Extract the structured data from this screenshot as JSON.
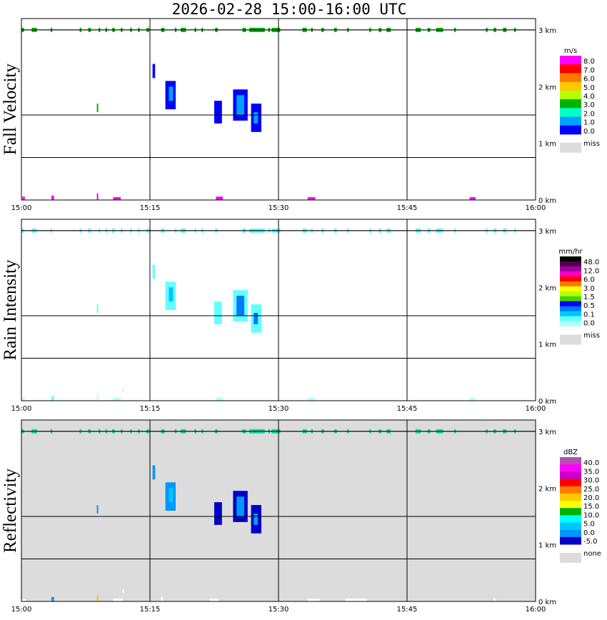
{
  "title": "2026-02-28  15:00-16:00 UTC",
  "x_ticks": [
    "15:00",
    "15:15",
    "15:30",
    "15:45",
    "16:00"
  ],
  "height_ticks": [
    "0 km",
    "1 km",
    "2 km",
    "3 km"
  ],
  "colors": {
    "grid": "#000000",
    "missing": "#dcdcdc",
    "background": "#ffffff"
  },
  "chart_data": [
    {
      "type": "heatmap",
      "title": "Fall Velocity",
      "xlabel": "",
      "ylabel": "Fall Velocity",
      "xlim": [
        "15:00",
        "16:00"
      ],
      "ylim": [
        0,
        3.2
      ],
      "grid": true,
      "background": "#ffffff",
      "legend": {
        "unit": "m/s",
        "position": "right",
        "labels": [
          "8.0",
          "7.0",
          "6.0",
          "5.0",
          "4.0",
          "3.0",
          "2.0",
          "1.0",
          "0.0"
        ],
        "colors": [
          "#ff00ff",
          "#ff0000",
          "#ff7800",
          "#ffc800",
          "#b4ff00",
          "#00b400",
          "#00ffc8",
          "#00a0ff",
          "#0000ff"
        ],
        "missing_label": "miss"
      },
      "echoes": [
        {
          "t0": 15.3,
          "t1": 15.6,
          "h0": 2.15,
          "h1": 2.4,
          "color": "#0000ff"
        },
        {
          "t0": 16.8,
          "t1": 18.0,
          "h0": 1.6,
          "h1": 2.1,
          "color": "#0000ff"
        },
        {
          "t0": 17.2,
          "t1": 17.7,
          "h0": 1.75,
          "h1": 2.0,
          "color": "#00a0ff"
        },
        {
          "t0": 22.5,
          "t1": 23.4,
          "h0": 1.35,
          "h1": 1.75,
          "color": "#0000ff"
        },
        {
          "t0": 24.7,
          "t1": 26.4,
          "h0": 1.4,
          "h1": 1.95,
          "color": "#0000ff"
        },
        {
          "t0": 25.1,
          "t1": 26.0,
          "h0": 1.5,
          "h1": 1.85,
          "color": "#00a0ff"
        },
        {
          "t0": 26.8,
          "t1": 28.0,
          "h0": 1.2,
          "h1": 1.7,
          "color": "#0000ff"
        },
        {
          "t0": 27.1,
          "t1": 27.6,
          "h0": 1.35,
          "h1": 1.55,
          "color": "#00a0ff"
        },
        {
          "t0": 8.8,
          "t1": 8.95,
          "h0": 1.55,
          "h1": 1.7,
          "color": "#00b400"
        },
        {
          "t0": 0.1,
          "t1": 0.4,
          "h0": 0.0,
          "h1": 0.06,
          "color": "#ff00ff"
        },
        {
          "t0": 3.5,
          "t1": 3.8,
          "h0": 0.0,
          "h1": 0.08,
          "color": "#ff00ff"
        },
        {
          "t0": 8.8,
          "t1": 8.95,
          "h0": 0.0,
          "h1": 0.12,
          "color": "#ff00ff"
        },
        {
          "t0": 10.7,
          "t1": 11.6,
          "h0": 0.0,
          "h1": 0.05,
          "color": "#ff00ff"
        },
        {
          "t0": 22.7,
          "t1": 23.5,
          "h0": 0.0,
          "h1": 0.06,
          "color": "#ff00ff"
        },
        {
          "t0": 33.4,
          "t1": 34.3,
          "h0": 0.0,
          "h1": 0.05,
          "color": "#ff00ff"
        },
        {
          "t0": 52.3,
          "t1": 53.0,
          "h0": 0.0,
          "h1": 0.05,
          "color": "#ff00ff"
        }
      ],
      "top_band_color": "#00b400"
    },
    {
      "type": "heatmap",
      "title": "Rain Intensity",
      "xlabel": "",
      "ylabel": "Rain Intensity",
      "xlim": [
        "15:00",
        "16:00"
      ],
      "ylim": [
        0,
        3.2
      ],
      "grid": true,
      "background": "#ffffff",
      "legend": {
        "unit": "mm/hr",
        "position": "right",
        "labels": [
          "48.0",
          "12.0",
          "6.0",
          "3.0",
          "1.5",
          "0.5",
          "0.1",
          "0.0"
        ],
        "colors": [
          "#000000",
          "#500050",
          "#a000a0",
          "#ff00c8",
          "#ff0000",
          "#ff7800",
          "#ffff00",
          "#b4ff00",
          "#46d200",
          "#0000ff",
          "#0078ff",
          "#00c8ff",
          "#64ffff",
          "#b4ffff"
        ],
        "missing_label": "miss"
      },
      "echoes": [
        {
          "t0": 15.3,
          "t1": 15.6,
          "h0": 2.15,
          "h1": 2.4,
          "color": "#64ffff"
        },
        {
          "t0": 16.8,
          "t1": 18.0,
          "h0": 1.6,
          "h1": 2.1,
          "color": "#64ffff"
        },
        {
          "t0": 17.2,
          "t1": 17.7,
          "h0": 1.75,
          "h1": 2.0,
          "color": "#00c8ff"
        },
        {
          "t0": 22.5,
          "t1": 23.4,
          "h0": 1.35,
          "h1": 1.75,
          "color": "#64ffff"
        },
        {
          "t0": 24.7,
          "t1": 26.4,
          "h0": 1.4,
          "h1": 1.95,
          "color": "#64ffff"
        },
        {
          "t0": 25.1,
          "t1": 26.0,
          "h0": 1.5,
          "h1": 1.85,
          "color": "#0078ff"
        },
        {
          "t0": 26.8,
          "t1": 28.0,
          "h0": 1.2,
          "h1": 1.7,
          "color": "#64ffff"
        },
        {
          "t0": 27.1,
          "t1": 27.6,
          "h0": 1.35,
          "h1": 1.55,
          "color": "#0078ff"
        },
        {
          "t0": 8.8,
          "t1": 8.95,
          "h0": 1.55,
          "h1": 1.7,
          "color": "#64ffff"
        },
        {
          "t0": 0.1,
          "t1": 0.4,
          "h0": 0.0,
          "h1": 0.06,
          "color": "#b4ffff"
        },
        {
          "t0": 3.5,
          "t1": 3.8,
          "h0": 0.0,
          "h1": 0.08,
          "color": "#64ffff"
        },
        {
          "t0": 8.8,
          "t1": 8.95,
          "h0": 0.0,
          "h1": 0.12,
          "color": "#b4ffff"
        },
        {
          "t0": 10.7,
          "t1": 11.6,
          "h0": 0.0,
          "h1": 0.05,
          "color": "#b4ffff"
        },
        {
          "t0": 11.8,
          "t1": 11.95,
          "h0": 0.15,
          "h1": 0.22,
          "color": "#b4ffff"
        },
        {
          "t0": 22.7,
          "t1": 23.5,
          "h0": 0.0,
          "h1": 0.06,
          "color": "#b4ffff"
        },
        {
          "t0": 33.4,
          "t1": 34.3,
          "h0": 0.0,
          "h1": 0.05,
          "color": "#b4ffff"
        },
        {
          "t0": 52.3,
          "t1": 53.0,
          "h0": 0.0,
          "h1": 0.05,
          "color": "#b4ffff"
        }
      ],
      "top_band_color": "#64ffff"
    },
    {
      "type": "heatmap",
      "title": "Reflectivity",
      "xlabel": "",
      "ylabel": "Reflectivity",
      "xlim": [
        "15:00",
        "16:00"
      ],
      "ylim": [
        0,
        3.2
      ],
      "grid": true,
      "background": "#dcdcdc",
      "legend": {
        "unit": "dBZ",
        "position": "right",
        "labels": [
          "40.0",
          "35.0",
          "30.0",
          "25.0",
          "20.0",
          "15.0",
          "10.0",
          "5.0",
          "0.0",
          "-5.0"
        ],
        "colors": [
          "#b450b4",
          "#ff00ff",
          "#c800c8",
          "#ff0000",
          "#ff7800",
          "#ffc800",
          "#ffff00",
          "#00b400",
          "#00ffff",
          "#00c8ff",
          "#0096ff",
          "#0000c8"
        ],
        "missing_label": "none"
      },
      "echoes": [
        {
          "t0": 15.3,
          "t1": 15.6,
          "h0": 2.15,
          "h1": 2.4,
          "color": "#0096ff"
        },
        {
          "t0": 16.8,
          "t1": 18.0,
          "h0": 1.6,
          "h1": 2.1,
          "color": "#0096ff"
        },
        {
          "t0": 17.2,
          "t1": 17.7,
          "h0": 1.75,
          "h1": 2.0,
          "color": "#00c8ff"
        },
        {
          "t0": 22.5,
          "t1": 23.4,
          "h0": 1.35,
          "h1": 1.75,
          "color": "#0000c8"
        },
        {
          "t0": 24.7,
          "t1": 26.4,
          "h0": 1.4,
          "h1": 1.95,
          "color": "#0000c8"
        },
        {
          "t0": 25.1,
          "t1": 26.0,
          "h0": 1.5,
          "h1": 1.85,
          "color": "#0096ff"
        },
        {
          "t0": 26.8,
          "t1": 28.0,
          "h0": 1.2,
          "h1": 1.7,
          "color": "#0000c8"
        },
        {
          "t0": 27.1,
          "t1": 27.6,
          "h0": 1.35,
          "h1": 1.55,
          "color": "#0096ff"
        },
        {
          "t0": 8.8,
          "t1": 8.95,
          "h0": 1.55,
          "h1": 1.7,
          "color": "#0096ff"
        },
        {
          "t0": 0.0,
          "t1": 0.5,
          "h0": 0.0,
          "h1": 0.04,
          "color": "#ffffff"
        },
        {
          "t0": 3.5,
          "t1": 3.8,
          "h0": 0.0,
          "h1": 0.08,
          "color": "#0096ff"
        },
        {
          "t0": 8.8,
          "t1": 8.95,
          "h0": 0.0,
          "h1": 0.12,
          "color": "#ffc800"
        },
        {
          "t0": 10.7,
          "t1": 11.8,
          "h0": 0.0,
          "h1": 0.05,
          "color": "#ffffff"
        },
        {
          "t0": 11.8,
          "t1": 11.95,
          "h0": 0.15,
          "h1": 0.22,
          "color": "#ffffff"
        },
        {
          "t0": 16.3,
          "t1": 16.5,
          "h0": 0.0,
          "h1": 0.08,
          "color": "#ffffff"
        },
        {
          "t0": 22.0,
          "t1": 23.0,
          "h0": 0.0,
          "h1": 0.05,
          "color": "#ffffff"
        },
        {
          "t0": 33.4,
          "t1": 34.8,
          "h0": 0.0,
          "h1": 0.05,
          "color": "#ffffff"
        },
        {
          "t0": 37.8,
          "t1": 40.3,
          "h0": 0.0,
          "h1": 0.05,
          "color": "#ffffff"
        },
        {
          "t0": 55.1,
          "t1": 55.3,
          "h0": 0.0,
          "h1": 0.06,
          "color": "#ffffff"
        }
      ],
      "top_band_color": "#00e0a0"
    }
  ],
  "top_band_segments": [
    [
      0.0,
      0.3
    ],
    [
      1.2,
      1.8
    ],
    [
      3.4,
      3.6
    ],
    [
      6.8,
      7.0
    ],
    [
      7.8,
      8.1
    ],
    [
      9.0,
      9.2
    ],
    [
      9.8,
      10.0
    ],
    [
      10.6,
      10.9
    ],
    [
      11.6,
      11.8
    ],
    [
      12.7,
      12.9
    ],
    [
      13.6,
      13.8
    ],
    [
      14.6,
      14.9
    ],
    [
      16.3,
      16.7
    ],
    [
      17.9,
      18.1
    ],
    [
      18.6,
      19.2
    ],
    [
      20.2,
      20.4
    ],
    [
      21.0,
      21.2
    ],
    [
      22.6,
      22.9
    ],
    [
      25.8,
      26.2
    ],
    [
      26.6,
      28.4
    ],
    [
      28.8,
      29.0
    ],
    [
      29.2,
      30.2
    ],
    [
      32.8,
      33.3
    ],
    [
      33.8,
      34.0
    ],
    [
      35.0,
      35.3
    ],
    [
      36.5,
      36.8
    ],
    [
      38.0,
      38.2
    ],
    [
      40.6,
      40.8
    ],
    [
      41.7,
      42.0
    ],
    [
      42.6,
      43.1
    ],
    [
      46.0,
      46.6
    ],
    [
      47.4,
      47.7
    ],
    [
      48.4,
      49.2
    ],
    [
      50.5,
      50.7
    ],
    [
      54.2,
      54.4
    ],
    [
      55.1,
      55.4
    ],
    [
      56.2,
      56.6
    ],
    [
      57.5,
      57.7
    ]
  ]
}
